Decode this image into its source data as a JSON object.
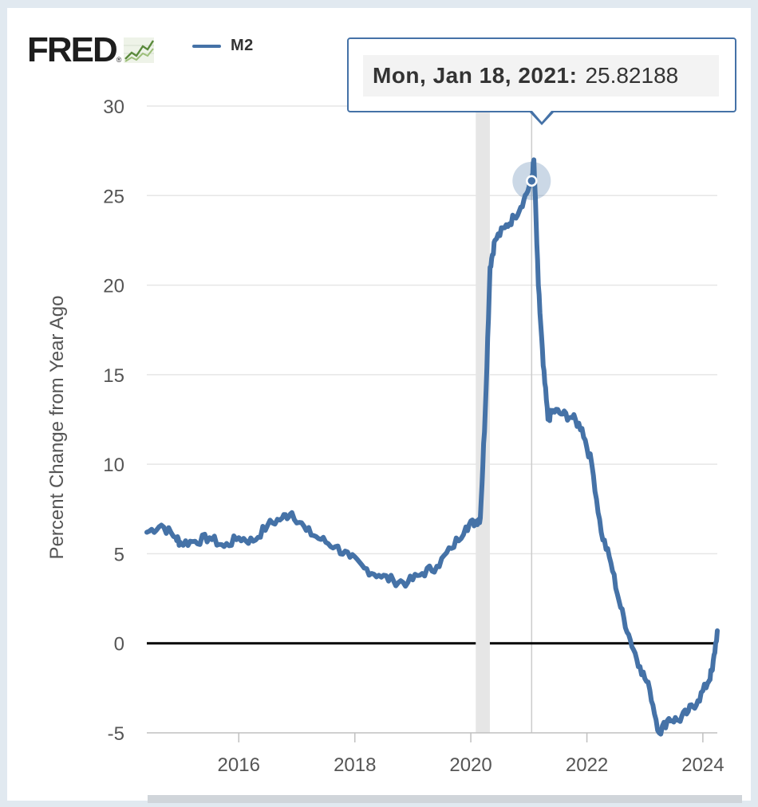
{
  "brand": {
    "logo_text": "FRED",
    "registered_mark": "®",
    "logo_icon": "trend-chart-icon"
  },
  "colors": {
    "series": "#4572a7",
    "recession_band": "#e6e6e6",
    "zero_line": "#000000",
    "grid": "#e6e6e6",
    "crosshair": "#cccccc"
  },
  "tooltip": {
    "date": "Mon, Jan 18, 2021:",
    "value": "25.82188"
  },
  "chart_data": {
    "type": "line",
    "title": "",
    "xlabel": "",
    "ylabel": "Percent Change from Year Ago",
    "ylim": [
      -5,
      30
    ],
    "xlim": [
      "2014-06-01",
      "2024-04-01"
    ],
    "yticks": [
      -5,
      0,
      5,
      10,
      15,
      20,
      25,
      30
    ],
    "xticks": [
      "2016",
      "2018",
      "2020",
      "2022",
      "2024"
    ],
    "grid": true,
    "legend": {
      "position": "top-left"
    },
    "recession": {
      "start": "2020-02-01",
      "end": "2020-04-30"
    },
    "highlight": {
      "x": "2021-01-18",
      "y": 25.82188
    },
    "series": [
      {
        "name": "M2",
        "x": [
          "2014-06",
          "2014-09",
          "2014-12",
          "2015-01",
          "2015-04",
          "2015-07",
          "2015-10",
          "2016-01",
          "2016-04",
          "2016-07",
          "2016-10",
          "2016-12",
          "2017-03",
          "2017-06",
          "2017-09",
          "2017-12",
          "2018-03",
          "2018-06",
          "2018-09",
          "2018-12",
          "2019-03",
          "2019-06",
          "2019-09",
          "2019-12",
          "2020-02",
          "2020-03",
          "2020-04",
          "2020-05",
          "2020-06",
          "2020-08",
          "2020-10",
          "2020-12",
          "2021-01-18",
          "2021-02",
          "2021-03",
          "2021-04",
          "2021-05",
          "2021-06",
          "2021-08",
          "2021-10",
          "2021-12",
          "2022-02",
          "2022-04",
          "2022-06",
          "2022-08",
          "2022-10",
          "2022-12",
          "2023-02",
          "2023-04",
          "2023-06",
          "2023-08",
          "2023-10",
          "2023-12",
          "2024-02",
          "2024-03",
          "2024-04"
        ],
        "y": [
          6.2,
          6.6,
          5.9,
          5.6,
          5.7,
          5.9,
          5.4,
          5.9,
          5.7,
          6.6,
          7.0,
          7.3,
          6.3,
          5.8,
          5.4,
          4.8,
          4.2,
          3.8,
          3.5,
          3.4,
          3.9,
          4.3,
          5.3,
          6.5,
          6.8,
          7.0,
          13.0,
          21.0,
          22.5,
          23.2,
          23.8,
          24.8,
          25.82,
          27.0,
          20.0,
          15.5,
          12.5,
          13.0,
          12.8,
          12.6,
          12.0,
          10.0,
          6.2,
          4.5,
          2.0,
          0.2,
          -1.3,
          -2.6,
          -5.0,
          -4.2,
          -4.3,
          -3.8,
          -3.2,
          -2.2,
          -1.5,
          0.7
        ]
      }
    ]
  }
}
